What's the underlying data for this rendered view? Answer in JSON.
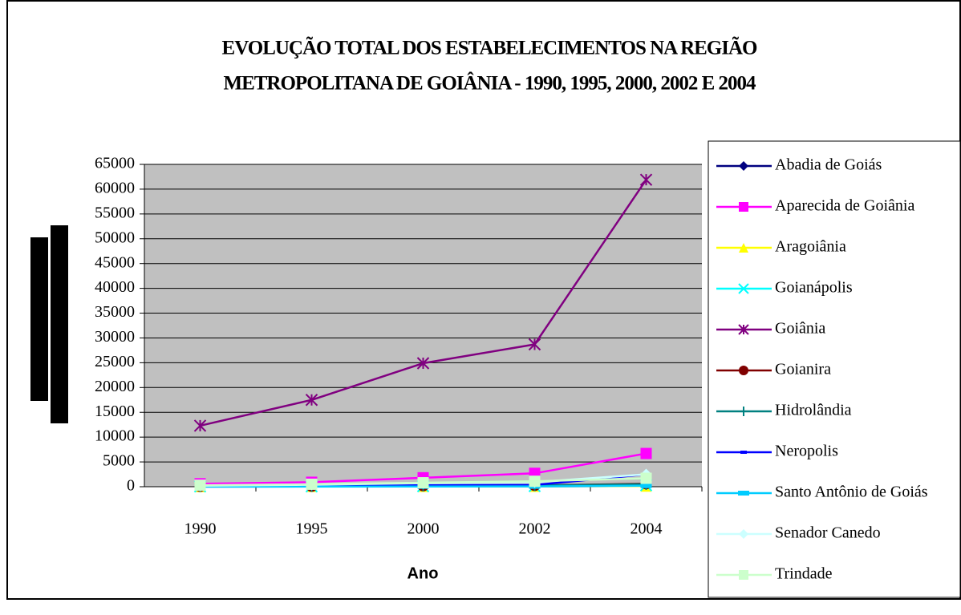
{
  "chart_data": {
    "type": "line",
    "title": [
      "EVOLUÇÃO TOTAL DOS ESTABELECIMENTOS NA REGIÃO",
      "METROPOLITANA DE GOIÂNIA - 1990, 1995, 2000, 2002 E 2004"
    ],
    "x_label": "Ano",
    "categories": [
      "1990",
      "1995",
      "2000",
      "2002",
      "2004"
    ],
    "ylim": [
      0,
      65000
    ],
    "yticks": [
      0,
      5000,
      10000,
      15000,
      20000,
      25000,
      30000,
      35000,
      40000,
      45000,
      50000,
      55000,
      60000,
      65000
    ],
    "grid": true,
    "legend": "right",
    "series": [
      {
        "name": "Abadia de Goiás",
        "color": "#000080",
        "marker": "diamond",
        "values": [
          20,
          40,
          60,
          80,
          150
        ]
      },
      {
        "name": "Aparecida de Goiânia",
        "color": "#ff00ff",
        "marker": "square",
        "values": [
          600,
          900,
          1800,
          2700,
          6700
        ]
      },
      {
        "name": "Aragoiânia",
        "color": "#ffff00",
        "marker": "triangle",
        "values": [
          30,
          40,
          60,
          80,
          130
        ]
      },
      {
        "name": "Goianápolis",
        "color": "#00ffff",
        "marker": "x",
        "values": [
          50,
          60,
          100,
          120,
          300
        ]
      },
      {
        "name": "Goiânia",
        "color": "#800080",
        "marker": "star",
        "values": [
          12300,
          17500,
          24900,
          28700,
          61900
        ]
      },
      {
        "name": "Goianira",
        "color": "#800000",
        "marker": "circle",
        "values": [
          70,
          100,
          200,
          250,
          600
        ]
      },
      {
        "name": "Hidrolândia",
        "color": "#008080",
        "marker": "plus",
        "values": [
          80,
          100,
          200,
          250,
          500
        ]
      },
      {
        "name": "Neropolis",
        "color": "#0000ff",
        "marker": "dash",
        "values": [
          150,
          200,
          300,
          350,
          2500
        ]
      },
      {
        "name": "Santo Antônio de Goiás",
        "color": "#00ccff",
        "marker": "bar",
        "values": [
          20,
          30,
          50,
          60,
          200
        ]
      },
      {
        "name": "Senador Canedo",
        "color": "#ccffff",
        "marker": "diamond",
        "values": [
          200,
          400,
          700,
          900,
          2500
        ]
      },
      {
        "name": "Trindade",
        "color": "#ccffcc",
        "marker": "square",
        "values": [
          300,
          500,
          800,
          1100,
          1700
        ]
      }
    ]
  }
}
